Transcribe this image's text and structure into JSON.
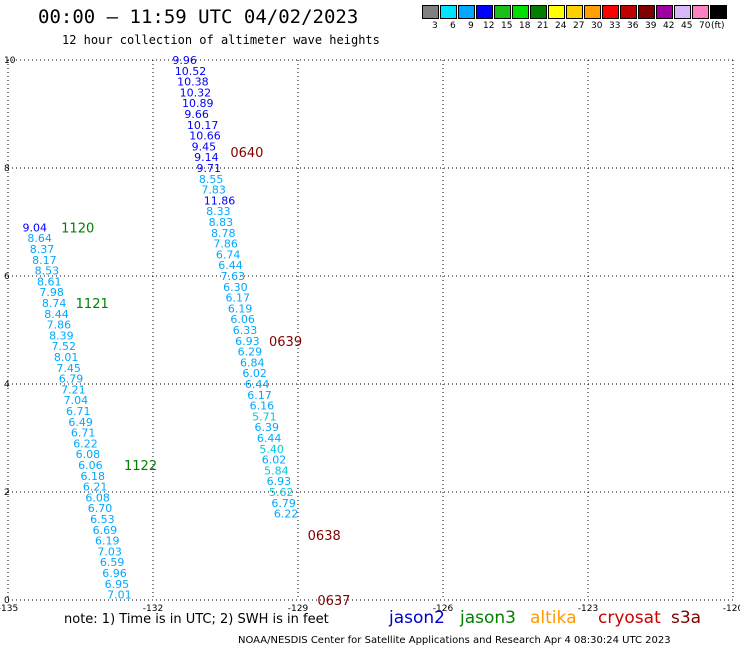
{
  "header": {
    "title": "00:00 – 11:59 UTC 04/02/2023",
    "subtitle": "12 hour collection of altimeter wave heights"
  },
  "colorbar": {
    "colors": [
      "#808080",
      "#00e5ff",
      "#00a8ff",
      "#0000ff",
      "#1abf1a",
      "#00e000",
      "#008000",
      "#ffff00",
      "#ffd000",
      "#ffa000",
      "#ff0000",
      "#c00000",
      "#800000",
      "#a000a0",
      "#d8b8f8",
      "#ff80c0",
      "#000000"
    ],
    "labels": [
      "3",
      "6",
      "9",
      "12",
      "15",
      "18",
      "21",
      "24",
      "27",
      "30",
      "33",
      "36",
      "39",
      "42",
      "45",
      "70",
      "(ft)"
    ]
  },
  "chart_data": {
    "type": "scatter",
    "xlim": [
      -135,
      -120
    ],
    "ylim": [
      0,
      10
    ],
    "x_ticks": [
      "-135",
      "-132",
      "-129",
      "-126",
      "-123",
      "-120"
    ],
    "y_ticks": [
      "0",
      "2",
      "4",
      "6",
      "8",
      "10"
    ],
    "grid": true,
    "passes": [
      {
        "satellite": "jason3",
        "labels": [
          {
            "text": "1120",
            "lon": -133.9,
            "lat": 6.9
          },
          {
            "text": "1121",
            "lon": -133.6,
            "lat": 5.5
          },
          {
            "text": "1122",
            "lon": -132.6,
            "lat": 2.5
          }
        ],
        "points": [
          {
            "lon": -134.7,
            "lat": 6.9,
            "value": "9.04"
          },
          {
            "lon": -134.6,
            "lat": 6.7,
            "value": "8.64"
          },
          {
            "lon": -134.55,
            "lat": 6.5,
            "value": "8.37"
          },
          {
            "lon": -134.5,
            "lat": 6.3,
            "value": "8.17"
          },
          {
            "lon": -134.45,
            "lat": 6.1,
            "value": "8.53"
          },
          {
            "lon": -134.4,
            "lat": 5.9,
            "value": "8.61"
          },
          {
            "lon": -134.35,
            "lat": 5.7,
            "value": "7.98"
          },
          {
            "lon": -134.3,
            "lat": 5.5,
            "value": "8.74"
          },
          {
            "lon": -134.25,
            "lat": 5.3,
            "value": "8.44"
          },
          {
            "lon": -134.2,
            "lat": 5.1,
            "value": "7.86"
          },
          {
            "lon": -134.15,
            "lat": 4.9,
            "value": "8.39"
          },
          {
            "lon": -134.1,
            "lat": 4.7,
            "value": "7.52"
          },
          {
            "lon": -134.05,
            "lat": 4.5,
            "value": "8.01"
          },
          {
            "lon": -134.0,
            "lat": 4.3,
            "value": "7.45"
          },
          {
            "lon": -133.95,
            "lat": 4.1,
            "value": "6.79"
          },
          {
            "lon": -133.9,
            "lat": 3.9,
            "value": "7.21"
          },
          {
            "lon": -133.85,
            "lat": 3.7,
            "value": "7.04"
          },
          {
            "lon": -133.8,
            "lat": 3.5,
            "value": "6.71"
          },
          {
            "lon": -133.75,
            "lat": 3.3,
            "value": "6.49"
          },
          {
            "lon": -133.7,
            "lat": 3.1,
            "value": "6.71"
          },
          {
            "lon": -133.65,
            "lat": 2.9,
            "value": "6.22"
          },
          {
            "lon": -133.6,
            "lat": 2.7,
            "value": "6.08"
          },
          {
            "lon": -133.55,
            "lat": 2.5,
            "value": "6.06"
          },
          {
            "lon": -133.5,
            "lat": 2.3,
            "value": "6.18"
          },
          {
            "lon": -133.45,
            "lat": 2.1,
            "value": "6.21"
          },
          {
            "lon": -133.4,
            "lat": 1.9,
            "value": "6.08"
          },
          {
            "lon": -133.35,
            "lat": 1.7,
            "value": "6.70"
          },
          {
            "lon": -133.3,
            "lat": 1.5,
            "value": "6.53"
          },
          {
            "lon": -133.25,
            "lat": 1.3,
            "value": "6.69"
          },
          {
            "lon": -133.2,
            "lat": 1.1,
            "value": "6.19"
          },
          {
            "lon": -133.15,
            "lat": 0.9,
            "value": "7.03"
          },
          {
            "lon": -133.1,
            "lat": 0.7,
            "value": "6.59"
          },
          {
            "lon": -133.05,
            "lat": 0.5,
            "value": "6.96"
          },
          {
            "lon": -133.0,
            "lat": 0.3,
            "value": "6.95"
          },
          {
            "lon": -132.95,
            "lat": 0.1,
            "value": "7.01"
          }
        ]
      },
      {
        "satellite": "cryosat",
        "labels": [
          {
            "text": "0640",
            "lon": -130.4,
            "lat": 8.3
          },
          {
            "text": "0639",
            "lon": -129.6,
            "lat": 4.8
          },
          {
            "text": "0638",
            "lon": -128.8,
            "lat": 1.2
          },
          {
            "text": "0637",
            "lon": -128.6,
            "lat": 0.0
          }
        ],
        "points": [
          {
            "lon": -131.6,
            "lat": 10.0,
            "value": "9.96"
          },
          {
            "lon": -131.55,
            "lat": 9.8,
            "value": "10.52"
          },
          {
            "lon": -131.5,
            "lat": 9.6,
            "value": "10.38"
          },
          {
            "lon": -131.45,
            "lat": 9.4,
            "value": "10.32"
          },
          {
            "lon": -131.4,
            "lat": 9.2,
            "value": "10.89"
          },
          {
            "lon": -131.35,
            "lat": 9.0,
            "value": "9.66"
          },
          {
            "lon": -131.3,
            "lat": 8.8,
            "value": "10.17"
          },
          {
            "lon": -131.25,
            "lat": 8.6,
            "value": "10.66"
          },
          {
            "lon": -131.2,
            "lat": 8.4,
            "value": "9.45"
          },
          {
            "lon": -131.15,
            "lat": 8.2,
            "value": "9.14"
          },
          {
            "lon": -131.1,
            "lat": 8.0,
            "value": "9.71"
          },
          {
            "lon": -131.05,
            "lat": 7.8,
            "value": "8.55"
          },
          {
            "lon": -131.0,
            "lat": 7.6,
            "value": "7.83"
          },
          {
            "lon": -130.95,
            "lat": 7.4,
            "value": "11.86"
          },
          {
            "lon": -130.9,
            "lat": 7.2,
            "value": "8.33"
          },
          {
            "lon": -130.85,
            "lat": 7.0,
            "value": "8.83"
          },
          {
            "lon": -130.8,
            "lat": 6.8,
            "value": "8.78"
          },
          {
            "lon": -130.75,
            "lat": 6.6,
            "value": "7.86"
          },
          {
            "lon": -130.7,
            "lat": 6.4,
            "value": "6.74"
          },
          {
            "lon": -130.65,
            "lat": 6.2,
            "value": "6.44"
          },
          {
            "lon": -130.6,
            "lat": 6.0,
            "value": "7.63"
          },
          {
            "lon": -130.55,
            "lat": 5.8,
            "value": "6.30"
          },
          {
            "lon": -130.5,
            "lat": 5.6,
            "value": "6.17"
          },
          {
            "lon": -130.45,
            "lat": 5.4,
            "value": "6.19"
          },
          {
            "lon": -130.4,
            "lat": 5.2,
            "value": "6.06"
          },
          {
            "lon": -130.35,
            "lat": 5.0,
            "value": "6.33"
          },
          {
            "lon": -130.3,
            "lat": 4.8,
            "value": "6.93"
          },
          {
            "lon": -130.25,
            "lat": 4.6,
            "value": "6.29"
          },
          {
            "lon": -130.2,
            "lat": 4.4,
            "value": "6.84"
          },
          {
            "lon": -130.15,
            "lat": 4.2,
            "value": "6.02"
          },
          {
            "lon": -130.1,
            "lat": 4.0,
            "value": "6.44"
          },
          {
            "lon": -130.05,
            "lat": 3.8,
            "value": "6.17"
          },
          {
            "lon": -130.0,
            "lat": 3.6,
            "value": "6.16"
          },
          {
            "lon": -129.95,
            "lat": 3.4,
            "value": "5.71"
          },
          {
            "lon": -129.9,
            "lat": 3.2,
            "value": "6.39"
          },
          {
            "lon": -129.85,
            "lat": 3.0,
            "value": "6.44"
          },
          {
            "lon": -129.8,
            "lat": 2.8,
            "value": "5.40"
          },
          {
            "lon": -129.75,
            "lat": 2.6,
            "value": "6.02"
          },
          {
            "lon": -129.7,
            "lat": 2.4,
            "value": "5.84"
          },
          {
            "lon": -129.65,
            "lat": 2.2,
            "value": "6.93"
          },
          {
            "lon": -129.6,
            "lat": 2.0,
            "value": "5.62"
          },
          {
            "lon": -129.55,
            "lat": 1.8,
            "value": "6.79"
          },
          {
            "lon": -129.5,
            "lat": 1.6,
            "value": "6.22"
          }
        ]
      }
    ]
  },
  "footer": {
    "note": "note:  1) Time is in UTC; 2) SWH is in feet",
    "legend": [
      {
        "name": "jason2",
        "color": "#0000cc"
      },
      {
        "name": "jason3",
        "color": "#008000"
      },
      {
        "name": "altika",
        "color": "#ff9900"
      },
      {
        "name": "cryosat",
        "color": "#cc0000"
      },
      {
        "name": "s3a",
        "color": "#800000"
      }
    ],
    "credit": "NOAA/NESDIS Center for Satellite Applications and Research    Apr  4 08:30:24 UTC 2023"
  }
}
